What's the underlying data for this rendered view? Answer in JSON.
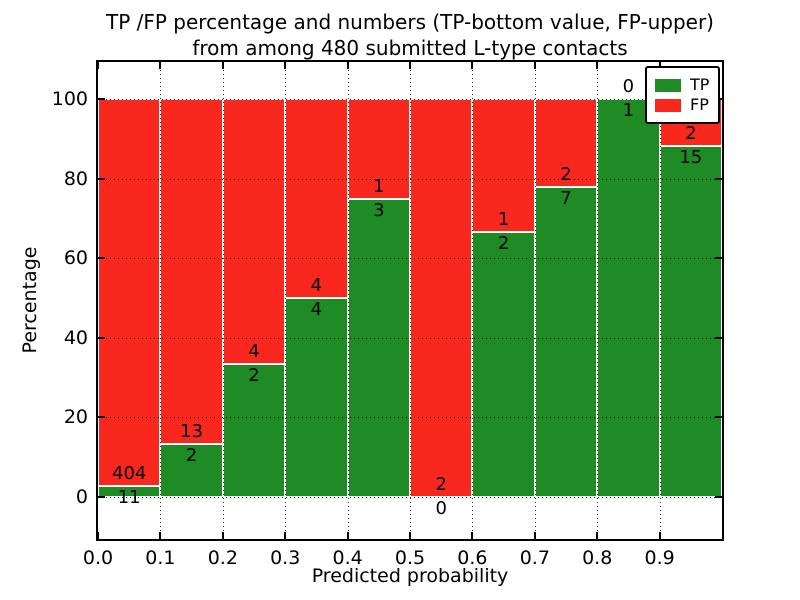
{
  "title": {
    "line1": "TP /FP percentage and numbers (TP-bottom value, FP-upper)",
    "line2": "from among 480 submitted L-type contacts"
  },
  "chart_data": {
    "type": "bar",
    "stacked": true,
    "values_normalized_to_percent": true,
    "title": "TP /FP percentage and numbers (TP-bottom value, FP-upper)\nfrom among 480 submitted L-type contacts",
    "xlabel": "Predicted probability",
    "ylabel": "Percentage",
    "total_contacts": 480,
    "x_tick_labels": [
      "0.0",
      "0.1",
      "0.2",
      "0.3",
      "0.4",
      "0.5",
      "0.6",
      "0.7",
      "0.8",
      "0.9"
    ],
    "y_ticks": [
      0,
      20,
      40,
      60,
      80,
      100
    ],
    "xlim": [
      0.0,
      1.0
    ],
    "ylim": [
      -10.5,
      109.5
    ],
    "bin_width": 0.1,
    "grid": "dotted",
    "bins": [
      {
        "x_start": 0.0,
        "tp": 11,
        "fp": 404,
        "tp_pct": 2.7
      },
      {
        "x_start": 0.1,
        "tp": 2,
        "fp": 13,
        "tp_pct": 13.3
      },
      {
        "x_start": 0.2,
        "tp": 2,
        "fp": 4,
        "tp_pct": 33.3
      },
      {
        "x_start": 0.3,
        "tp": 4,
        "fp": 4,
        "tp_pct": 50.0
      },
      {
        "x_start": 0.4,
        "tp": 3,
        "fp": 1,
        "tp_pct": 75.0
      },
      {
        "x_start": 0.5,
        "tp": 0,
        "fp": 2,
        "tp_pct": 0.0
      },
      {
        "x_start": 0.6,
        "tp": 2,
        "fp": 1,
        "tp_pct": 66.7
      },
      {
        "x_start": 0.7,
        "tp": 7,
        "fp": 2,
        "tp_pct": 77.8
      },
      {
        "x_start": 0.8,
        "tp": 1,
        "fp": 0,
        "tp_pct": 100.0
      },
      {
        "x_start": 0.9,
        "tp": 15,
        "fp": 2,
        "tp_pct": 88.2
      }
    ],
    "colors": {
      "tp": "#1f8b24",
      "fp": "#f8281f"
    },
    "legend": {
      "position": "upper right",
      "entries": [
        {
          "label": "TP",
          "color": "#1f8b24"
        },
        {
          "label": "FP",
          "color": "#f8281f"
        }
      ]
    }
  }
}
